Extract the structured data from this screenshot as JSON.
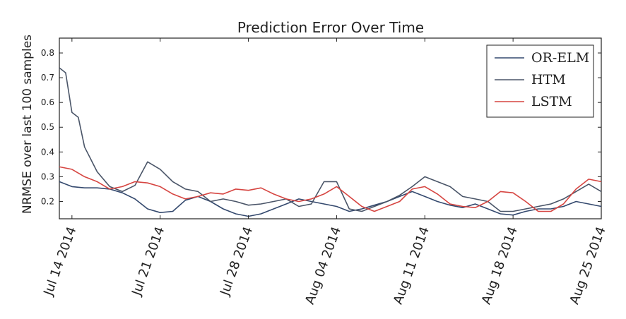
{
  "chart_data": {
    "type": "line",
    "title": "Prediction Error Over Time",
    "xlabel": "",
    "ylabel": "NRMSE over last 100 samples",
    "xlim": [
      "2014-07-13",
      "2014-08-25"
    ],
    "ylim": [
      0.13,
      0.86
    ],
    "x_ticks": [
      "Jul 14 2014",
      "Jul 21 2014",
      "Jul 28 2014",
      "Aug 04 2014",
      "Aug 11 2014",
      "Aug 18 2014",
      "Aug 25 2014"
    ],
    "y_ticks": [
      "0.2",
      "0.3",
      "0.4",
      "0.5",
      "0.6",
      "0.7",
      "0.8"
    ],
    "grid": false,
    "legend_position": "top-right",
    "series": [
      {
        "name": "OR-ELM",
        "color": "#34496e",
        "points": [
          [
            "2014-07-13",
            0.28
          ],
          [
            "2014-07-14",
            0.26
          ],
          [
            "2014-07-15",
            0.255
          ],
          [
            "2014-07-16",
            0.255
          ],
          [
            "2014-07-17",
            0.25
          ],
          [
            "2014-07-18",
            0.235
          ],
          [
            "2014-07-19",
            0.21
          ],
          [
            "2014-07-20",
            0.17
          ],
          [
            "2014-07-21",
            0.155
          ],
          [
            "2014-07-22",
            0.16
          ],
          [
            "2014-07-23",
            0.205
          ],
          [
            "2014-07-24",
            0.22
          ],
          [
            "2014-07-25",
            0.2
          ],
          [
            "2014-07-26",
            0.17
          ],
          [
            "2014-07-27",
            0.15
          ],
          [
            "2014-07-28",
            0.14
          ],
          [
            "2014-07-29",
            0.15
          ],
          [
            "2014-07-30",
            0.17
          ],
          [
            "2014-07-31",
            0.19
          ],
          [
            "2014-08-01",
            0.21
          ],
          [
            "2014-08-02",
            0.2
          ],
          [
            "2014-08-03",
            0.19
          ],
          [
            "2014-08-04",
            0.18
          ],
          [
            "2014-08-05",
            0.16
          ],
          [
            "2014-08-06",
            0.17
          ],
          [
            "2014-08-07",
            0.185
          ],
          [
            "2014-08-08",
            0.2
          ],
          [
            "2014-08-09",
            0.22
          ],
          [
            "2014-08-10",
            0.24
          ],
          [
            "2014-08-11",
            0.22
          ],
          [
            "2014-08-12",
            0.2
          ],
          [
            "2014-08-13",
            0.185
          ],
          [
            "2014-08-14",
            0.175
          ],
          [
            "2014-08-15",
            0.19
          ],
          [
            "2014-08-16",
            0.17
          ],
          [
            "2014-08-17",
            0.15
          ],
          [
            "2014-08-18",
            0.145
          ],
          [
            "2014-08-19",
            0.16
          ],
          [
            "2014-08-20",
            0.17
          ],
          [
            "2014-08-21",
            0.17
          ],
          [
            "2014-08-22",
            0.18
          ],
          [
            "2014-08-23",
            0.2
          ],
          [
            "2014-08-24",
            0.19
          ],
          [
            "2014-08-25",
            0.18
          ]
        ]
      },
      {
        "name": "HTM",
        "color": "#4a5568",
        "points": [
          [
            "2014-07-13",
            0.74
          ],
          [
            "2014-07-13.5",
            0.72
          ],
          [
            "2014-07-14",
            0.56
          ],
          [
            "2014-07-14.5",
            0.54
          ],
          [
            "2014-07-15",
            0.42
          ],
          [
            "2014-07-16",
            0.32
          ],
          [
            "2014-07-17",
            0.26
          ],
          [
            "2014-07-18",
            0.24
          ],
          [
            "2014-07-19",
            0.265
          ],
          [
            "2014-07-20",
            0.36
          ],
          [
            "2014-07-21",
            0.33
          ],
          [
            "2014-07-22",
            0.28
          ],
          [
            "2014-07-23",
            0.25
          ],
          [
            "2014-07-24",
            0.24
          ],
          [
            "2014-07-25",
            0.2
          ],
          [
            "2014-07-26",
            0.21
          ],
          [
            "2014-07-27",
            0.2
          ],
          [
            "2014-07-28",
            0.185
          ],
          [
            "2014-07-29",
            0.19
          ],
          [
            "2014-07-30",
            0.2
          ],
          [
            "2014-07-31",
            0.21
          ],
          [
            "2014-08-01",
            0.18
          ],
          [
            "2014-08-02",
            0.19
          ],
          [
            "2014-08-03",
            0.28
          ],
          [
            "2014-08-04",
            0.28
          ],
          [
            "2014-08-05",
            0.17
          ],
          [
            "2014-08-06",
            0.16
          ],
          [
            "2014-08-07",
            0.18
          ],
          [
            "2014-08-08",
            0.2
          ],
          [
            "2014-08-09",
            0.225
          ],
          [
            "2014-08-10",
            0.26
          ],
          [
            "2014-08-11",
            0.3
          ],
          [
            "2014-08-12",
            0.28
          ],
          [
            "2014-08-13",
            0.26
          ],
          [
            "2014-08-14",
            0.22
          ],
          [
            "2014-08-15",
            0.21
          ],
          [
            "2014-08-16",
            0.2
          ],
          [
            "2014-08-17",
            0.16
          ],
          [
            "2014-08-18",
            0.16
          ],
          [
            "2014-08-19",
            0.17
          ],
          [
            "2014-08-20",
            0.18
          ],
          [
            "2014-08-21",
            0.19
          ],
          [
            "2014-08-22",
            0.21
          ],
          [
            "2014-08-23",
            0.24
          ],
          [
            "2014-08-24",
            0.27
          ],
          [
            "2014-08-25",
            0.24
          ]
        ]
      },
      {
        "name": "LSTM",
        "color": "#d64541",
        "points": [
          [
            "2014-07-13",
            0.34
          ],
          [
            "2014-07-14",
            0.33
          ],
          [
            "2014-07-15",
            0.3
          ],
          [
            "2014-07-16",
            0.28
          ],
          [
            "2014-07-17",
            0.25
          ],
          [
            "2014-07-18",
            0.26
          ],
          [
            "2014-07-19",
            0.28
          ],
          [
            "2014-07-20",
            0.275
          ],
          [
            "2014-07-21",
            0.26
          ],
          [
            "2014-07-22",
            0.23
          ],
          [
            "2014-07-23",
            0.21
          ],
          [
            "2014-07-24",
            0.22
          ],
          [
            "2014-07-25",
            0.235
          ],
          [
            "2014-07-26",
            0.23
          ],
          [
            "2014-07-27",
            0.25
          ],
          [
            "2014-07-28",
            0.245
          ],
          [
            "2014-07-29",
            0.255
          ],
          [
            "2014-07-30",
            0.23
          ],
          [
            "2014-07-31",
            0.21
          ],
          [
            "2014-08-01",
            0.2
          ],
          [
            "2014-08-02",
            0.21
          ],
          [
            "2014-08-03",
            0.23
          ],
          [
            "2014-08-04",
            0.26
          ],
          [
            "2014-08-05",
            0.22
          ],
          [
            "2014-08-06",
            0.18
          ],
          [
            "2014-08-07",
            0.16
          ],
          [
            "2014-08-08",
            0.18
          ],
          [
            "2014-08-09",
            0.2
          ],
          [
            "2014-08-10",
            0.25
          ],
          [
            "2014-08-11",
            0.26
          ],
          [
            "2014-08-12",
            0.23
          ],
          [
            "2014-08-13",
            0.19
          ],
          [
            "2014-08-14",
            0.18
          ],
          [
            "2014-08-15",
            0.175
          ],
          [
            "2014-08-16",
            0.2
          ],
          [
            "2014-08-17",
            0.24
          ],
          [
            "2014-08-18",
            0.235
          ],
          [
            "2014-08-19",
            0.2
          ],
          [
            "2014-08-20",
            0.16
          ],
          [
            "2014-08-21",
            0.16
          ],
          [
            "2014-08-22",
            0.19
          ],
          [
            "2014-08-23",
            0.25
          ],
          [
            "2014-08-24",
            0.29
          ],
          [
            "2014-08-25",
            0.28
          ]
        ]
      }
    ]
  }
}
